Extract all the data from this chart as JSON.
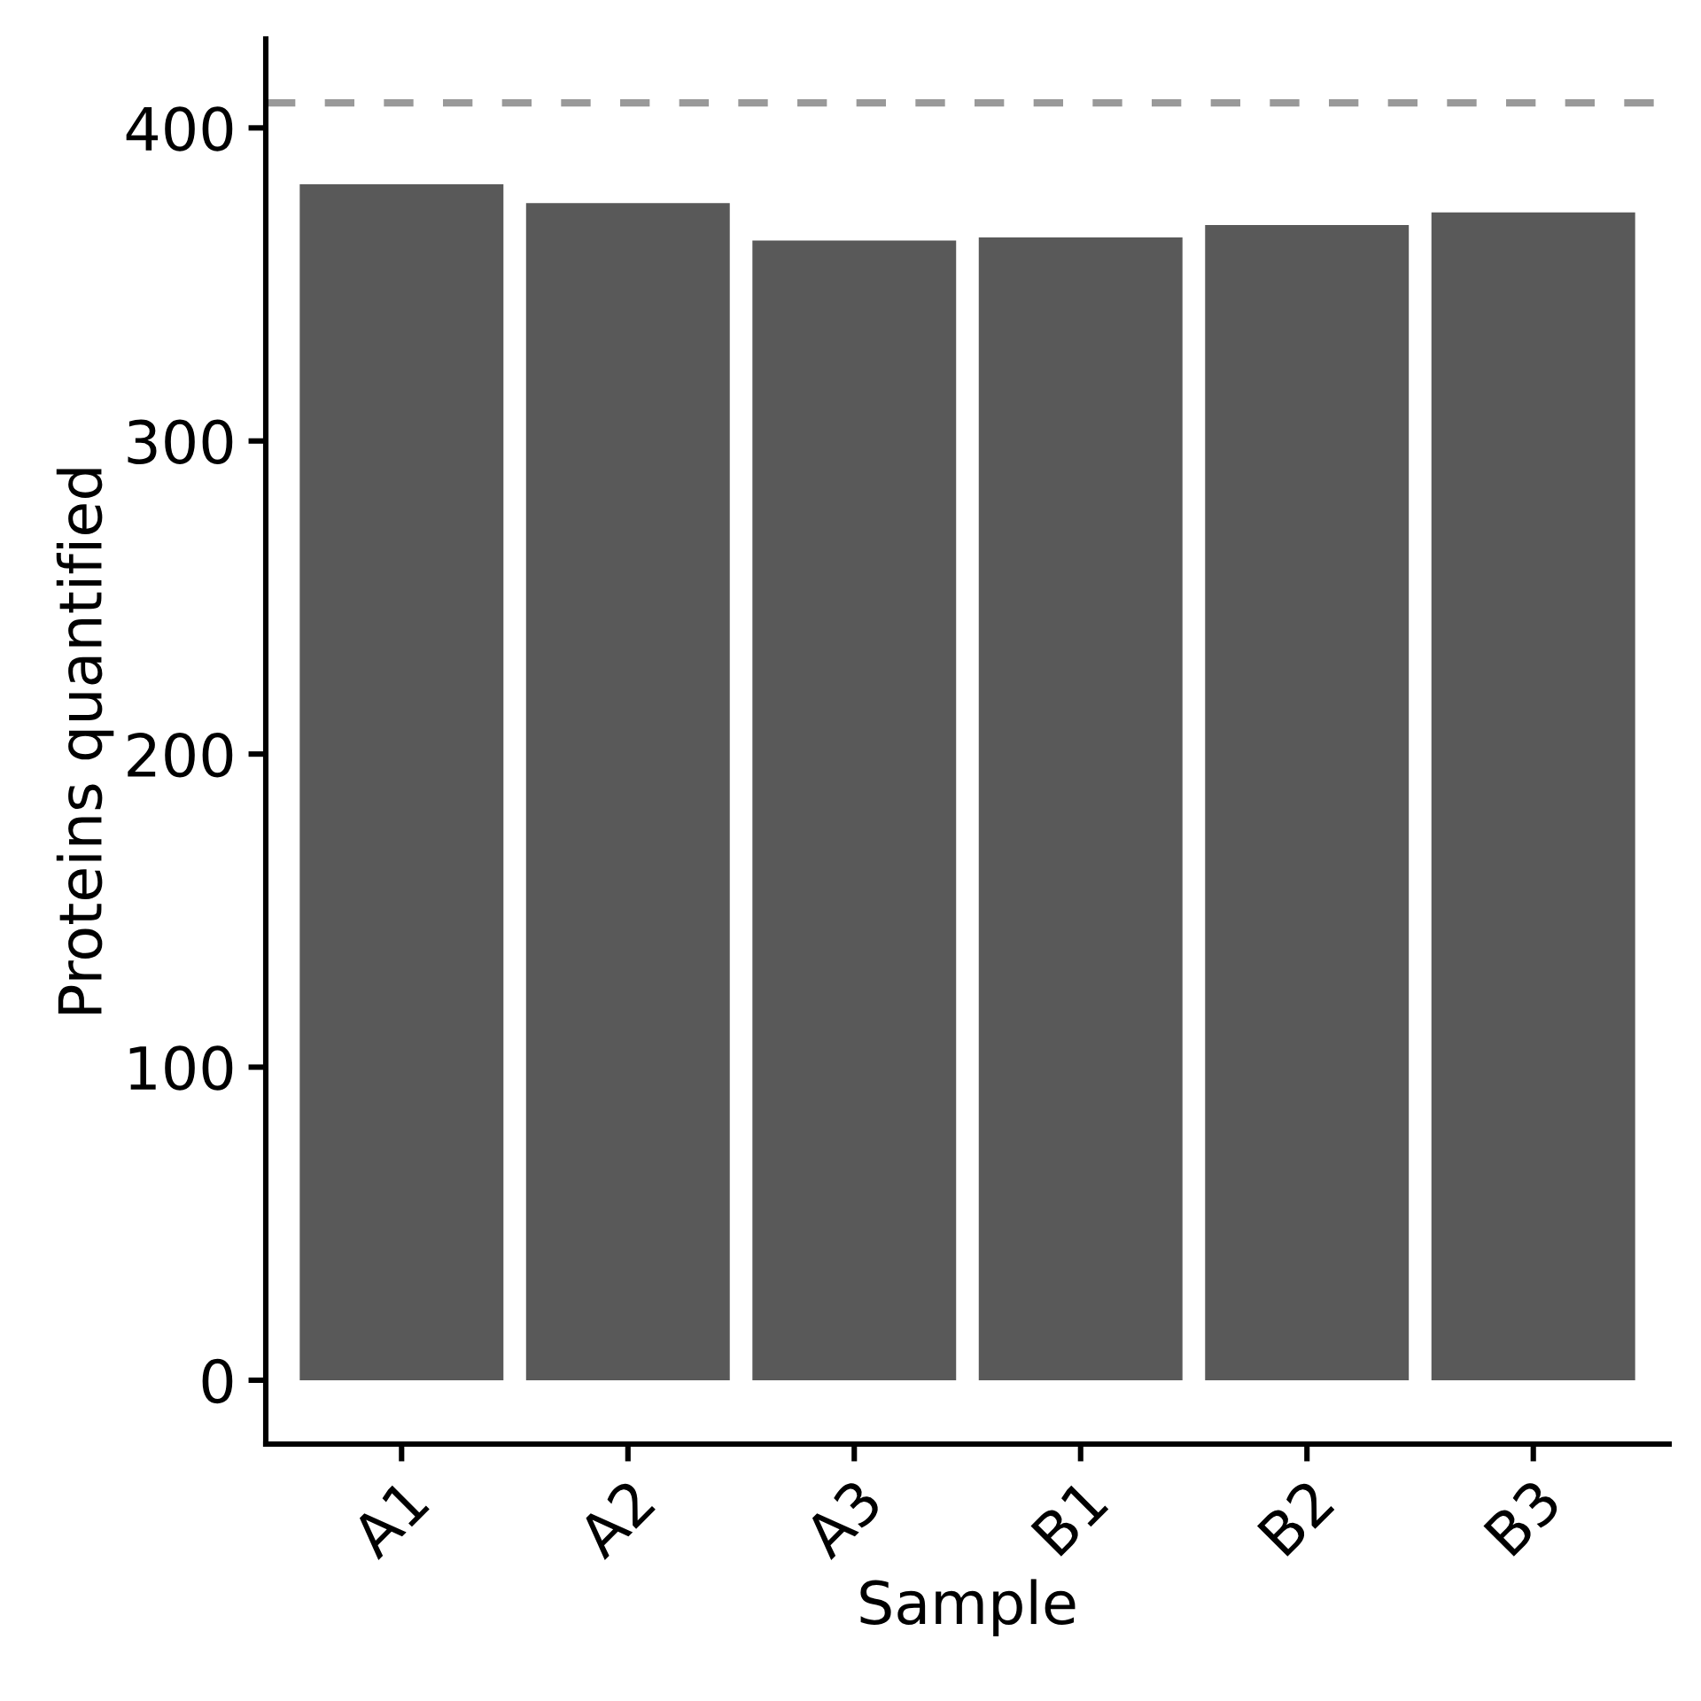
{
  "chart_data": {
    "type": "bar",
    "xlabel": "Sample",
    "ylabel": "Proteins quantified",
    "categories": [
      "A1",
      "A2",
      "A3",
      "B1",
      "B2",
      "B3"
    ],
    "values": [
      382,
      376,
      364,
      365,
      369,
      373
    ],
    "color": "#595959",
    "ylim": [
      -20.4,
      428.4
    ],
    "yticks": [
      0,
      100,
      200,
      300,
      400
    ],
    "ref_lines": [
      {
        "axis": "y",
        "value": 408,
        "color": "#999999",
        "line_style": "dashed"
      }
    ]
  }
}
